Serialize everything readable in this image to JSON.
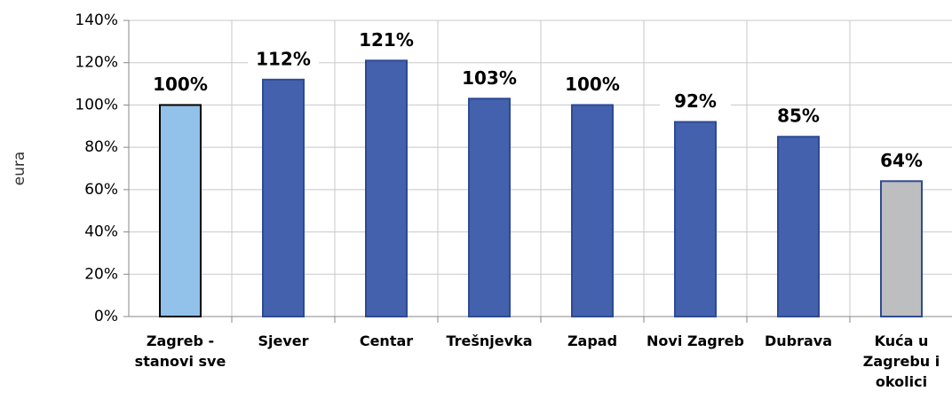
{
  "chart_data": {
    "type": "bar",
    "y_label": "eura",
    "categories": [
      "Zagreb - stanovi sve",
      "Sjever",
      "Centar",
      "Trešnjevka",
      "Zapad",
      "Novi Zagreb",
      "Dubrava",
      "Kuća u Zagrebu i okolici"
    ],
    "values": [
      100,
      112,
      121,
      103,
      100,
      92,
      85,
      64
    ],
    "value_labels": [
      "100%",
      "112%",
      "121%",
      "103%",
      "100%",
      "92%",
      "85%",
      "64%"
    ],
    "colors": [
      "#92c1e9",
      "#4361ad",
      "#4361ad",
      "#4361ad",
      "#4361ad",
      "#4361ad",
      "#4361ad",
      "#bdbec0"
    ],
    "border_colors": [
      "#000000",
      "#2e4a94",
      "#2e4a94",
      "#2e4a94",
      "#2e4a94",
      "#2e4a94",
      "#2e4a94",
      "#2e4a94"
    ],
    "ylim": [
      0,
      140
    ],
    "yticks": [
      {
        "value": 0,
        "label": "0%"
      },
      {
        "value": 20,
        "label": "20%"
      },
      {
        "value": 40,
        "label": "40%"
      },
      {
        "value": 60,
        "label": "60%"
      },
      {
        "value": 80,
        "label": "80%"
      },
      {
        "value": 100,
        "label": "100%"
      },
      {
        "value": 120,
        "label": "120%"
      },
      {
        "value": 140,
        "label": "140%"
      }
    ],
    "grid": true
  }
}
